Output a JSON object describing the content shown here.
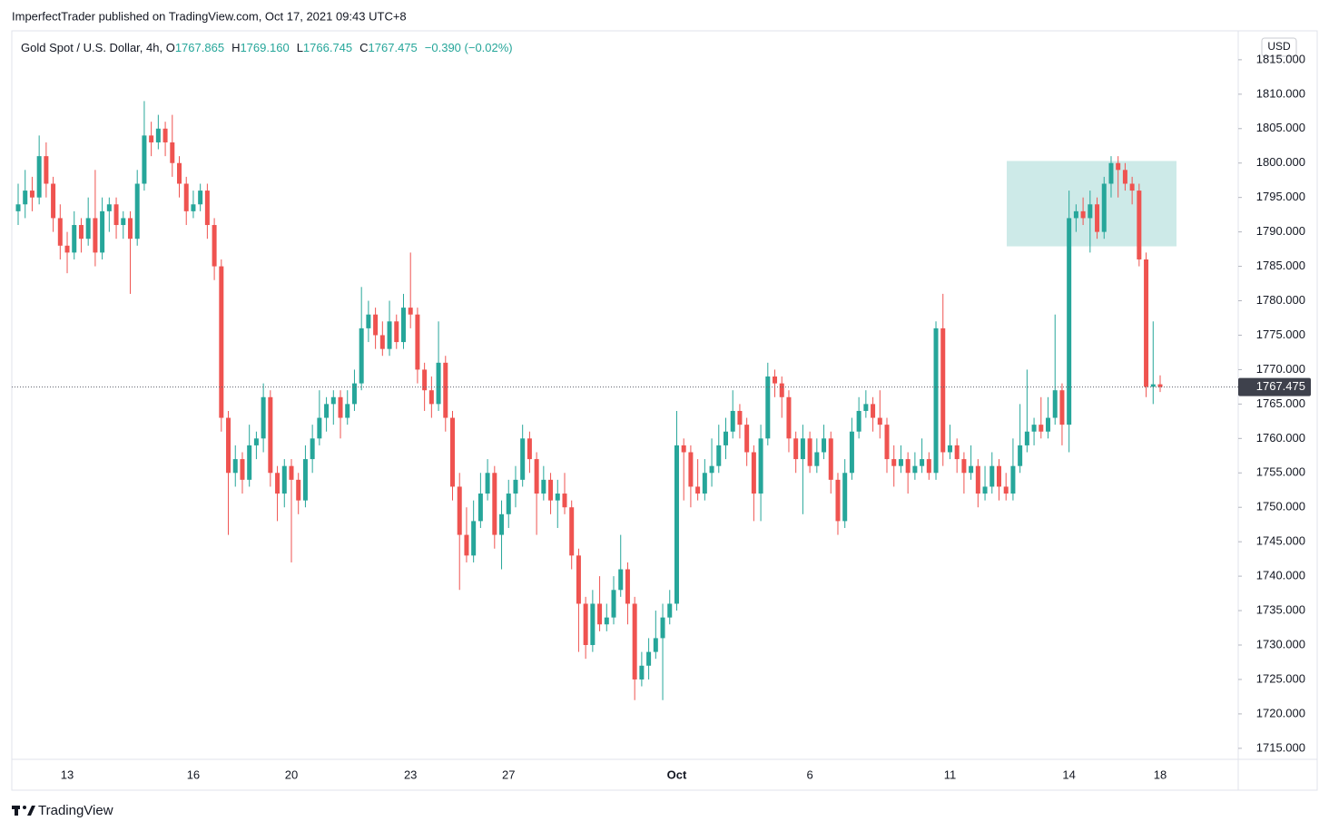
{
  "header": {
    "publisher": "ImperfectTrader published on TradingView.com, Oct 17, 2021 09:43 UTC+8",
    "symbol": "Gold Spot / U.S. Dollar, 4h, ",
    "readout": [
      {
        "key": "O",
        "value": "1767.865"
      },
      {
        "key": "H",
        "value": "1769.160"
      },
      {
        "key": "L",
        "value": "1766.745"
      },
      {
        "key": "C",
        "value": "1767.475"
      }
    ],
    "change": "−0.390 (−0.02%)",
    "currency": "USD",
    "footer": "TradingView"
  },
  "chart_data": {
    "type": "candlestick",
    "up_color": "#26a69a",
    "down_color": "#ef5350",
    "categories": [
      null,
      null,
      null,
      null,
      null,
      null,
      null,
      "13",
      null,
      null,
      null,
      null,
      null,
      null,
      null,
      null,
      null,
      null,
      null,
      null,
      null,
      null,
      null,
      null,
      null,
      "16",
      null,
      null,
      null,
      null,
      null,
      null,
      null,
      null,
      null,
      null,
      null,
      null,
      null,
      "20",
      null,
      null,
      null,
      null,
      null,
      null,
      null,
      null,
      null,
      null,
      null,
      null,
      null,
      null,
      null,
      null,
      "23",
      null,
      null,
      null,
      null,
      null,
      null,
      null,
      null,
      null,
      null,
      null,
      null,
      null,
      "27",
      null,
      null,
      null,
      null,
      null,
      null,
      null,
      null,
      null,
      null,
      null,
      null,
      null,
      null,
      null,
      null,
      null,
      null,
      null,
      null,
      null,
      null,
      null,
      "Oct",
      null,
      null,
      null,
      null,
      null,
      null,
      null,
      null,
      null,
      null,
      null,
      null,
      null,
      null,
      null,
      null,
      null,
      null,
      "6",
      null,
      null,
      null,
      null,
      null,
      null,
      null,
      null,
      null,
      null,
      null,
      null,
      null,
      null,
      null,
      null,
      null,
      null,
      null,
      "11",
      null,
      null,
      null,
      null,
      null,
      null,
      null,
      null,
      null,
      null,
      null,
      null,
      null,
      null,
      null,
      null,
      "14",
      null,
      null,
      null,
      null,
      null,
      null,
      null,
      null,
      null,
      null,
      null,
      null,
      "18"
    ],
    "candles": [
      [
        1793,
        1797,
        1791,
        1794
      ],
      [
        1794,
        1799,
        1792,
        1796
      ],
      [
        1796,
        1798,
        1793,
        1795
      ],
      [
        1795,
        1804,
        1794,
        1801
      ],
      [
        1801,
        1803,
        1795,
        1797
      ],
      [
        1797,
        1798,
        1790,
        1792
      ],
      [
        1792,
        1794,
        1786,
        1788
      ],
      [
        1788,
        1790,
        1784,
        1787
      ],
      [
        1787,
        1793,
        1786,
        1791
      ],
      [
        1791,
        1792,
        1787,
        1789
      ],
      [
        1789,
        1795,
        1788,
        1792
      ],
      [
        1792,
        1799,
        1785,
        1787
      ],
      [
        1787,
        1795,
        1786,
        1793
      ],
      [
        1793,
        1795,
        1790,
        1794
      ],
      [
        1794,
        1795,
        1789,
        1791
      ],
      [
        1791,
        1793,
        1789,
        1792
      ],
      [
        1792,
        1793,
        1781,
        1789
      ],
      [
        1789,
        1799,
        1788,
        1797
      ],
      [
        1797,
        1809,
        1796,
        1804
      ],
      [
        1804,
        1806,
        1801,
        1803
      ],
      [
        1803,
        1807,
        1802,
        1805
      ],
      [
        1805,
        1806,
        1801,
        1803
      ],
      [
        1803,
        1807,
        1798,
        1800
      ],
      [
        1800,
        1801,
        1795,
        1797
      ],
      [
        1797,
        1798,
        1791,
        1793
      ],
      [
        1793,
        1796,
        1792,
        1794
      ],
      [
        1794,
        1797,
        1793,
        1796
      ],
      [
        1796,
        1797,
        1789,
        1791
      ],
      [
        1791,
        1792,
        1783,
        1785
      ],
      [
        1785,
        1786,
        1761,
        1763
      ],
      [
        1763,
        1764,
        1746,
        1755
      ],
      [
        1755,
        1759,
        1753,
        1757
      ],
      [
        1757,
        1758,
        1752,
        1754
      ],
      [
        1754,
        1762,
        1753,
        1759
      ],
      [
        1759,
        1761,
        1757,
        1760
      ],
      [
        1760,
        1768,
        1758,
        1766
      ],
      [
        1766,
        1767,
        1753,
        1755
      ],
      [
        1755,
        1756,
        1748,
        1752
      ],
      [
        1752,
        1757,
        1750,
        1756
      ],
      [
        1756,
        1757,
        1742,
        1754
      ],
      [
        1754,
        1755,
        1749,
        1751
      ],
      [
        1751,
        1759,
        1750,
        1757
      ],
      [
        1757,
        1762,
        1755,
        1760
      ],
      [
        1760,
        1767,
        1759,
        1763
      ],
      [
        1763,
        1766,
        1761,
        1765
      ],
      [
        1765,
        1767,
        1762,
        1766
      ],
      [
        1766,
        1767,
        1760,
        1763
      ],
      [
        1763,
        1767,
        1762,
        1765
      ],
      [
        1765,
        1770,
        1764,
        1768
      ],
      [
        1768,
        1782,
        1767,
        1776
      ],
      [
        1776,
        1780,
        1774,
        1778
      ],
      [
        1778,
        1779,
        1773,
        1775
      ],
      [
        1775,
        1777,
        1772,
        1773
      ],
      [
        1773,
        1780,
        1772,
        1777
      ],
      [
        1777,
        1778,
        1773,
        1774
      ],
      [
        1774,
        1781,
        1773,
        1779
      ],
      [
        1779,
        1787,
        1776,
        1778
      ],
      [
        1778,
        1779,
        1768,
        1770
      ],
      [
        1770,
        1771,
        1764,
        1767
      ],
      [
        1767,
        1769,
        1763,
        1765
      ],
      [
        1765,
        1777,
        1764,
        1771
      ],
      [
        1771,
        1772,
        1761,
        1763
      ],
      [
        1763,
        1764,
        1751,
        1753
      ],
      [
        1753,
        1755,
        1738,
        1746
      ],
      [
        1746,
        1750,
        1742,
        1743
      ],
      [
        1743,
        1751,
        1742,
        1748
      ],
      [
        1748,
        1755,
        1747,
        1752
      ],
      [
        1752,
        1757,
        1751,
        1755
      ],
      [
        1755,
        1756,
        1744,
        1746
      ],
      [
        1746,
        1751,
        1741,
        1749
      ],
      [
        1749,
        1754,
        1747,
        1752
      ],
      [
        1752,
        1756,
        1750,
        1754
      ],
      [
        1754,
        1762,
        1753,
        1760
      ],
      [
        1760,
        1761,
        1755,
        1757
      ],
      [
        1757,
        1758,
        1746,
        1752
      ],
      [
        1752,
        1756,
        1751,
        1754
      ],
      [
        1754,
        1755,
        1749,
        1751
      ],
      [
        1751,
        1754,
        1747,
        1752
      ],
      [
        1752,
        1755,
        1749,
        1750
      ],
      [
        1750,
        1751,
        1741,
        1743
      ],
      [
        1743,
        1744,
        1729,
        1736
      ],
      [
        1736,
        1737,
        1728,
        1730
      ],
      [
        1730,
        1738,
        1729,
        1736
      ],
      [
        1736,
        1740,
        1732,
        1733
      ],
      [
        1733,
        1736,
        1732,
        1734
      ],
      [
        1734,
        1740,
        1733,
        1738
      ],
      [
        1738,
        1746,
        1737,
        1741
      ],
      [
        1741,
        1742,
        1733,
        1736
      ],
      [
        1736,
        1737,
        1722,
        1725
      ],
      [
        1725,
        1729,
        1724,
        1727
      ],
      [
        1727,
        1731,
        1725,
        1729
      ],
      [
        1729,
        1735,
        1728,
        1731
      ],
      [
        1731,
        1736,
        1722,
        1734
      ],
      [
        1734,
        1738,
        1733,
        1736
      ],
      [
        1736,
        1764,
        1735,
        1759
      ],
      [
        1759,
        1760,
        1751,
        1758
      ],
      [
        1758,
        1759,
        1750,
        1753
      ],
      [
        1753,
        1757,
        1751,
        1752
      ],
      [
        1752,
        1757,
        1751,
        1755
      ],
      [
        1755,
        1760,
        1753,
        1756
      ],
      [
        1756,
        1762,
        1755,
        1759
      ],
      [
        1759,
        1763,
        1757,
        1761
      ],
      [
        1761,
        1767,
        1760,
        1764
      ],
      [
        1764,
        1765,
        1760,
        1762
      ],
      [
        1762,
        1763,
        1756,
        1758
      ],
      [
        1758,
        1759,
        1748,
        1752
      ],
      [
        1752,
        1762,
        1748,
        1760
      ],
      [
        1760,
        1771,
        1759,
        1769
      ],
      [
        1769,
        1770,
        1766,
        1768
      ],
      [
        1768,
        1769,
        1763,
        1766
      ],
      [
        1766,
        1767,
        1758,
        1760
      ],
      [
        1760,
        1761,
        1755,
        1757
      ],
      [
        1757,
        1762,
        1749,
        1760
      ],
      [
        1760,
        1761,
        1755,
        1756
      ],
      [
        1756,
        1760,
        1755,
        1758
      ],
      [
        1758,
        1762,
        1757,
        1760
      ],
      [
        1760,
        1761,
        1752,
        1754
      ],
      [
        1754,
        1755,
        1746,
        1748
      ],
      [
        1748,
        1757,
        1747,
        1755
      ],
      [
        1755,
        1763,
        1754,
        1761
      ],
      [
        1761,
        1766,
        1760,
        1764
      ],
      [
        1764,
        1767,
        1763,
        1765
      ],
      [
        1765,
        1766,
        1761,
        1763
      ],
      [
        1763,
        1767,
        1760,
        1762
      ],
      [
        1762,
        1763,
        1755,
        1757
      ],
      [
        1757,
        1759,
        1753,
        1756
      ],
      [
        1756,
        1759,
        1755,
        1757
      ],
      [
        1757,
        1758,
        1752,
        1755
      ],
      [
        1755,
        1758,
        1754,
        1756
      ],
      [
        1756,
        1760,
        1755,
        1757
      ],
      [
        1757,
        1758,
        1754,
        1755
      ],
      [
        1755,
        1777,
        1754,
        1776
      ],
      [
        1776,
        1781,
        1756,
        1758
      ],
      [
        1758,
        1762,
        1757,
        1759
      ],
      [
        1759,
        1760,
        1755,
        1757
      ],
      [
        1757,
        1758,
        1752,
        1755
      ],
      [
        1755,
        1759,
        1754,
        1756
      ],
      [
        1756,
        1757,
        1750,
        1752
      ],
      [
        1752,
        1756,
        1751,
        1753
      ],
      [
        1753,
        1758,
        1752,
        1756
      ],
      [
        1756,
        1757,
        1751,
        1753
      ],
      [
        1753,
        1755,
        1751,
        1752
      ],
      [
        1752,
        1760,
        1751,
        1756
      ],
      [
        1756,
        1765,
        1755,
        1759
      ],
      [
        1759,
        1770,
        1758,
        1761
      ],
      [
        1761,
        1763,
        1759,
        1762
      ],
      [
        1762,
        1766,
        1760,
        1761
      ],
      [
        1761,
        1766,
        1760,
        1763
      ],
      [
        1763,
        1778,
        1762,
        1767
      ],
      [
        1767,
        1768,
        1759,
        1762
      ],
      [
        1762,
        1796,
        1758,
        1792
      ],
      [
        1792,
        1794,
        1790,
        1793
      ],
      [
        1793,
        1795,
        1791,
        1792
      ],
      [
        1792,
        1796,
        1787,
        1794
      ],
      [
        1794,
        1795,
        1789,
        1790
      ],
      [
        1790,
        1798,
        1789,
        1797
      ],
      [
        1797,
        1801,
        1795,
        1800
      ],
      [
        1800,
        1801,
        1795,
        1799
      ],
      [
        1799,
        1800,
        1796,
        1797
      ],
      [
        1797,
        1798,
        1794,
        1796
      ],
      [
        1796,
        1797,
        1785,
        1786
      ],
      [
        1786,
        1787,
        1766,
        1767.5
      ],
      [
        1767.5,
        1777,
        1765,
        1767.865
      ],
      [
        1767.865,
        1769.16,
        1766.745,
        1767.475
      ]
    ],
    "ylim": [
      1713.4,
      1819.2
    ],
    "yticks": [
      {
        "value": 1715,
        "label": "1715.000"
      },
      {
        "value": 1720,
        "label": "1720.000"
      },
      {
        "value": 1725,
        "label": "1725.000"
      },
      {
        "value": 1730,
        "label": "1730.000"
      },
      {
        "value": 1735,
        "label": "1735.000"
      },
      {
        "value": 1740,
        "label": "1740.000"
      },
      {
        "value": 1745,
        "label": "1745.000"
      },
      {
        "value": 1750,
        "label": "1750.000"
      },
      {
        "value": 1755,
        "label": "1755.000"
      },
      {
        "value": 1760,
        "label": "1760.000"
      },
      {
        "value": 1765,
        "label": "1765.000"
      },
      {
        "value": 1770,
        "label": "1770.000"
      },
      {
        "value": 1775,
        "label": "1775.000"
      },
      {
        "value": 1780,
        "label": "1780.000"
      },
      {
        "value": 1785,
        "label": "1785.000"
      },
      {
        "value": 1790,
        "label": "1790.000"
      },
      {
        "value": 1795,
        "label": "1795.000"
      },
      {
        "value": 1800,
        "label": "1800.000"
      },
      {
        "value": 1805,
        "label": "1805.000"
      },
      {
        "value": 1810,
        "label": "1810.000"
      },
      {
        "value": 1815,
        "label": "1815.000"
      }
    ],
    "last_price": {
      "value": 1767.475,
      "label": "1767.475"
    },
    "highlight_zone": {
      "low": 1787.9,
      "high": 1800.3,
      "color": "#b2dfdb"
    },
    "grid": false
  }
}
